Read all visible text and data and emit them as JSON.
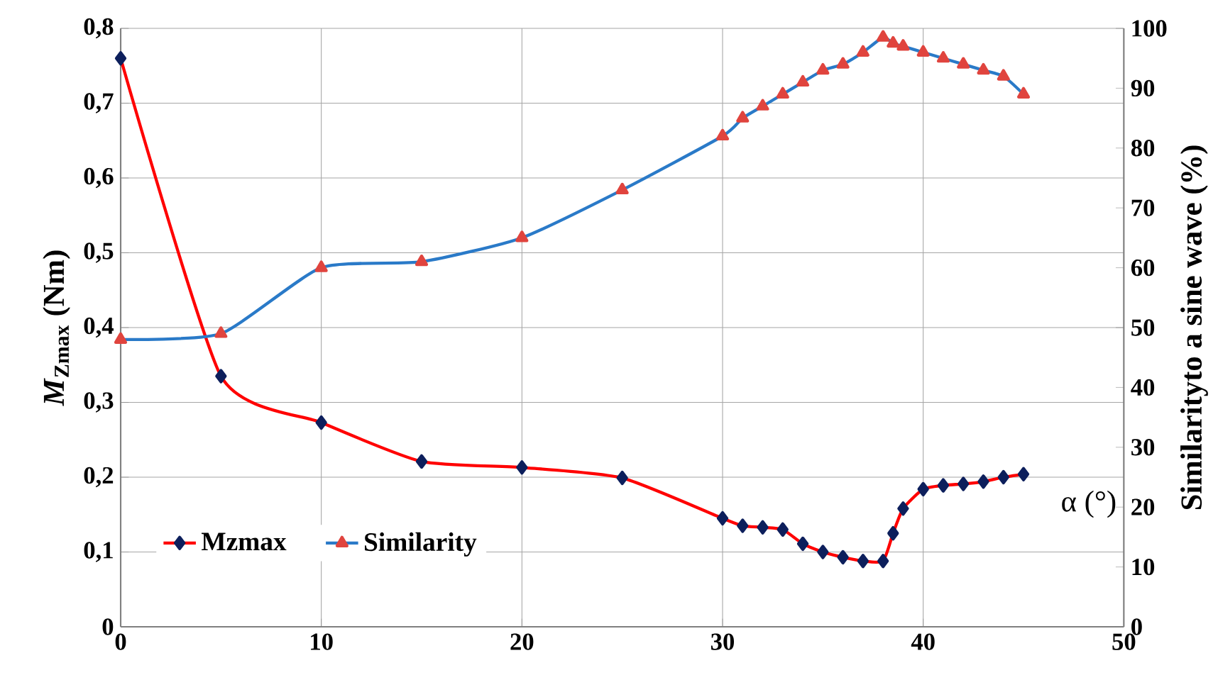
{
  "chart_data": {
    "type": "line",
    "xlabel": "α (°)",
    "ylabel": "*M*$_{Zmax}$ (Nm)",
    "y2label": "Similarityto a sine wave (%)",
    "xlim": [
      0,
      50
    ],
    "xticks": [
      0,
      10,
      20,
      30,
      40,
      50
    ],
    "ylim": [
      0,
      0.8
    ],
    "yticks": [
      {
        "value": 0,
        "label": "0"
      },
      {
        "value": 0.1,
        "label": "0,1"
      },
      {
        "value": 0.2,
        "label": "0,2"
      },
      {
        "value": 0.3,
        "label": "0,3"
      },
      {
        "value": 0.4,
        "label": "0,4"
      },
      {
        "value": 0.5,
        "label": "0,5"
      },
      {
        "value": 0.6,
        "label": "0,6"
      },
      {
        "value": 0.7,
        "label": "0,7"
      },
      {
        "value": 0.8,
        "label": "0,8"
      }
    ],
    "y2lim": [
      0,
      100
    ],
    "y2ticks": [
      0,
      10,
      20,
      30,
      40,
      50,
      60,
      70,
      80,
      90,
      100
    ],
    "grid": true,
    "legend": "bottom left",
    "series": [
      {
        "name": "Mzmax",
        "color": "#ff0000",
        "marker": "diamond",
        "x": [
          0,
          5,
          10,
          15,
          20,
          25,
          30,
          31,
          32,
          33,
          34,
          35,
          36,
          37,
          38,
          38.5,
          39,
          40,
          41,
          42,
          43,
          44,
          45
        ],
        "values": [
          0.76,
          0.335,
          0.273,
          0.221,
          0.213,
          0.199,
          0.145,
          0.135,
          0.133,
          0.13,
          0.111,
          0.1,
          0.093,
          0.088,
          0.088,
          0.125,
          0.158,
          0.184,
          0.189,
          0.191,
          0.194,
          0.2,
          0.204
        ]
      },
      {
        "name": "Similarity",
        "color": "#2a7ac8",
        "marker": "triangle",
        "axis": "y2",
        "x": [
          0,
          5,
          10,
          15,
          20,
          25,
          30,
          31,
          32,
          33,
          34,
          35,
          36,
          37,
          38,
          38.5,
          39,
          40,
          41,
          42,
          43,
          44,
          45
        ],
        "values": [
          48,
          49,
          60,
          61,
          65,
          73,
          82,
          85,
          87,
          89,
          91,
          93,
          94,
          96,
          98.5,
          97.5,
          97,
          96,
          95,
          94,
          93,
          92,
          89
        ]
      }
    ]
  }
}
